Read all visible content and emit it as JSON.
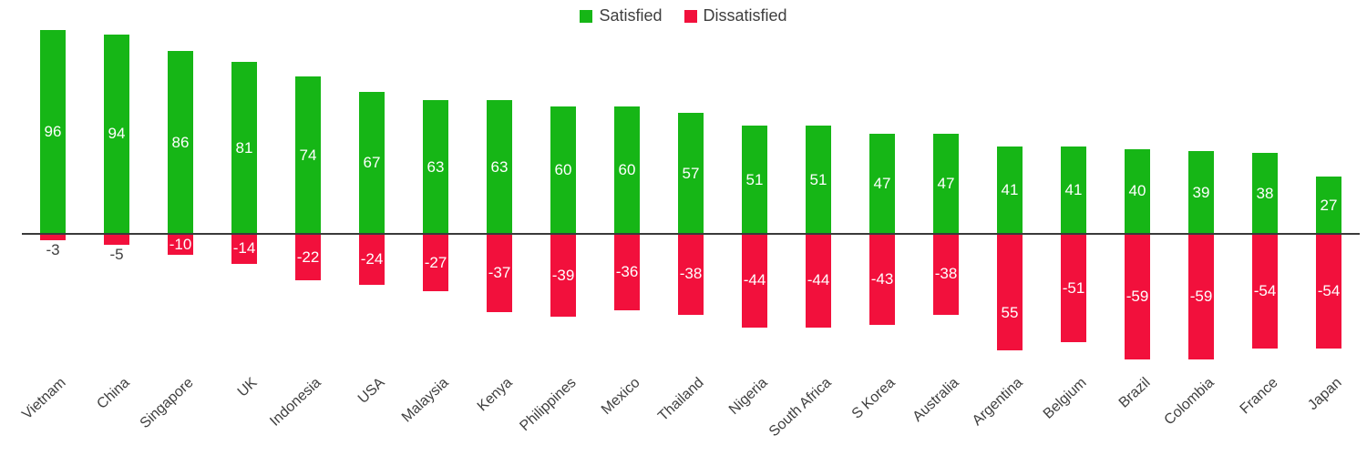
{
  "chart_data": {
    "type": "bar",
    "title": "",
    "xlabel": "",
    "ylabel": "",
    "grid": false,
    "ylim": [
      -62,
      100
    ],
    "legend_position": "top-center",
    "axis_line_color": "#3a3a3a",
    "category_label_color": "#404040",
    "value_label_color_inside": "#ffffff",
    "value_label_color_outside": "#404040",
    "categories": [
      "Vietnam",
      "China",
      "Singapore",
      "UK",
      "Indonesia",
      "USA",
      "Malaysia",
      "Kenya",
      "Philippines",
      "Mexico",
      "Thailand",
      "Nigeria",
      "South Africa",
      "S Korea",
      "Australia",
      "Argentina",
      "Belgium",
      "Brazil",
      "Colombia",
      "France",
      "Japan"
    ],
    "series": [
      {
        "name": "Satisfied",
        "color": "#16b616",
        "values": [
          96,
          94,
          86,
          81,
          74,
          67,
          63,
          63,
          60,
          60,
          57,
          51,
          51,
          47,
          47,
          41,
          41,
          40,
          39,
          38,
          27
        ],
        "labels": [
          "96",
          "94",
          "86",
          "81",
          "74",
          "67",
          "63",
          "63",
          "60",
          "60",
          "57",
          "51",
          "51",
          "47",
          "47",
          "41",
          "41",
          "40",
          "39",
          "38",
          "27"
        ]
      },
      {
        "name": "Dissatisfied",
        "color": "#f2103c",
        "values": [
          -3,
          -5,
          -10,
          -14,
          -22,
          -24,
          -27,
          -37,
          -39,
          -36,
          -38,
          -44,
          -44,
          -43,
          -38,
          -55,
          -51,
          -59,
          -59,
          -54,
          -54
        ],
        "labels": [
          "-3",
          "-5",
          "-10",
          "-14",
          "-22",
          "-24",
          "-27",
          "-37",
          "-39",
          "-36",
          "-38",
          "-44",
          "-44",
          "-43",
          "-38",
          "55",
          "-51",
          "-59",
          "-59",
          "-54",
          "-54"
        ],
        "label_placement": [
          "below",
          "below",
          "inside",
          "inside",
          "inside",
          "inside",
          "inside",
          "inside",
          "inside",
          "inside",
          "inside",
          "inside",
          "inside",
          "inside",
          "inside",
          "inside-low",
          "inside",
          "inside",
          "inside",
          "inside",
          "inside"
        ]
      }
    ]
  }
}
